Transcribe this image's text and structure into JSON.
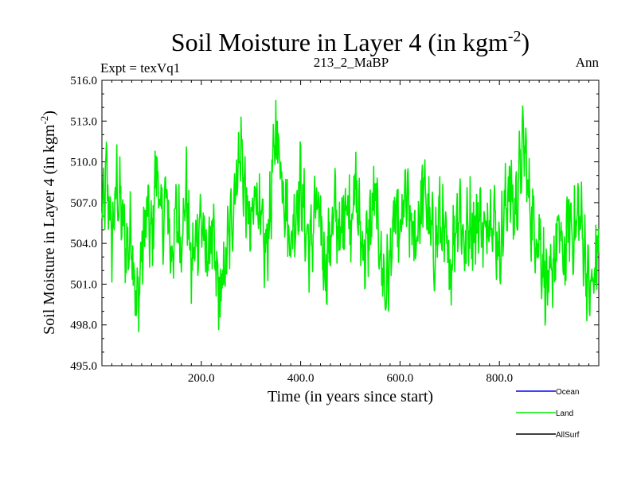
{
  "chart_data": {
    "type": "line",
    "title": "Soil Moisture in Layer 4 (in kgm",
    "title_sup": "-2",
    "title_close": ")",
    "left_label": "Expt = texVq1",
    "center_label": "213_2_MaBP",
    "right_label": "Ann",
    "xlabel": "Time (in years since start)",
    "ylabel": "Soil Moisture in Layer 4 (in kgm",
    "ylabel_sup": "-2",
    "ylabel_close": ")",
    "xlim": [
      0,
      1000
    ],
    "ylim": [
      495,
      516
    ],
    "x_ticks": [
      "200.0",
      "400.0",
      "600.0",
      "800.0"
    ],
    "x_tick_values": [
      200,
      400,
      600,
      800
    ],
    "y_ticks": [
      "495.0",
      "498.0",
      "501.0",
      "504.0",
      "507.0",
      "510.0",
      "513.0",
      "516.0"
    ],
    "y_tick_values": [
      495,
      498,
      501,
      504,
      507,
      510,
      513,
      516
    ],
    "legend": [
      {
        "name": "Ocean",
        "color": "#0000ff"
      },
      {
        "name": "Land",
        "color": "#00ee00"
      },
      {
        "name": "AllSurf",
        "color": "#000000"
      }
    ],
    "series": [
      {
        "name": "Land",
        "color": "#00ee00",
        "x": [
          0,
          10,
          20,
          30,
          40,
          50,
          60,
          70,
          80,
          90,
          100,
          110,
          120,
          130,
          140,
          150,
          160,
          170,
          180,
          190,
          200,
          210,
          220,
          230,
          240,
          250,
          260,
          270,
          280,
          290,
          300,
          310,
          320,
          330,
          340,
          350,
          360,
          370,
          380,
          390,
          400,
          410,
          420,
          430,
          440,
          450,
          460,
          470,
          480,
          490,
          500,
          510,
          520,
          530,
          540,
          550,
          560,
          570,
          580,
          590,
          600,
          610,
          620,
          630,
          640,
          650,
          660,
          670,
          680,
          690,
          700,
          710,
          720,
          730,
          740,
          750,
          760,
          770,
          780,
          790,
          800,
          810,
          820,
          830,
          840,
          850,
          860,
          870,
          880,
          890,
          900,
          910,
          920,
          930,
          940,
          950,
          960,
          970,
          980,
          990,
          1000
        ],
        "values": [
          505.5,
          509.0,
          504.0,
          508.5,
          506.0,
          503.5,
          505.0,
          499.0,
          503.0,
          506.5,
          504.0,
          510.0,
          505.0,
          507.5,
          503.0,
          506.0,
          504.5,
          508.0,
          502.0,
          504.5,
          506.0,
          502.5,
          505.0,
          501.5,
          500.0,
          503.0,
          505.5,
          509.0,
          511.0,
          507.0,
          504.5,
          508.5,
          505.0,
          503.0,
          507.0,
          512.5,
          510.0,
          507.0,
          504.0,
          506.5,
          508.5,
          505.0,
          503.5,
          507.0,
          505.0,
          502.0,
          504.5,
          506.5,
          504.0,
          507.5,
          506.0,
          508.0,
          505.0,
          503.0,
          505.5,
          507.5,
          503.5,
          500.5,
          502.5,
          506.0,
          504.0,
          507.5,
          505.5,
          504.0,
          506.5,
          508.0,
          505.0,
          503.5,
          506.0,
          504.0,
          502.0,
          505.0,
          507.0,
          503.5,
          506.0,
          505.0,
          506.5,
          504.0,
          507.0,
          505.5,
          503.5,
          506.0,
          508.5,
          506.0,
          509.0,
          511.5,
          507.0,
          505.0,
          504.5,
          502.0,
          500.0,
          503.0,
          505.0,
          502.5,
          506.0,
          504.5,
          506.5,
          504.0,
          500.5,
          501.0,
          504.5
        ]
      },
      {
        "name": "Ocean",
        "color": "#0000ff",
        "values": []
      },
      {
        "name": "AllSurf",
        "color": "#000000",
        "values": []
      }
    ]
  }
}
